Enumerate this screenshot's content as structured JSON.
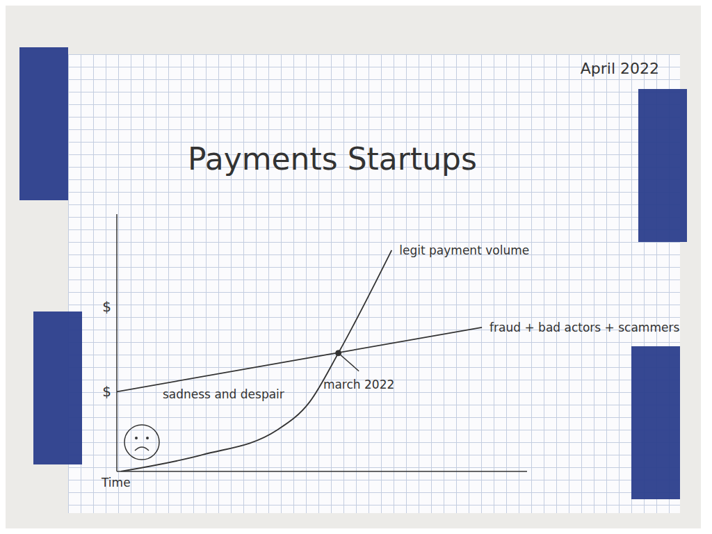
{
  "chart_data": {
    "type": "line",
    "title": "Payments Startups",
    "subtitle": "April 2022",
    "x_label": "Time",
    "xlim": [
      0,
      10
    ],
    "ylim": [
      0,
      10
    ],
    "xticks": [],
    "yticks": [
      {
        "value": 3.1,
        "label": "$"
      },
      {
        "value": 6.4,
        "label": "$"
      }
    ],
    "tick_labels": "y",
    "grid": false,
    "series": [
      {
        "name": "legit payment volume",
        "color": "#333333",
        "line_style": "smooth",
        "x": [
          0.1,
          2.1,
          3.9,
          4.7,
          5.4,
          6.7
        ],
        "values": [
          0,
          0.65,
          1.6,
          2.7,
          4.6,
          8.6
        ]
      },
      {
        "name": "fraud + bad actors + scammers",
        "color": "#333333",
        "line_style": "straight",
        "x": [
          0,
          8.9
        ],
        "values": [
          3.1,
          5.6
        ]
      }
    ],
    "annotations": [
      {
        "text": "sadness and despair",
        "x": 2.6,
        "y": 3.0
      },
      {
        "text": "march 2022",
        "x": 5.9,
        "y": 3.9,
        "xy": [
          5.4,
          4.6
        ]
      }
    ]
  }
}
